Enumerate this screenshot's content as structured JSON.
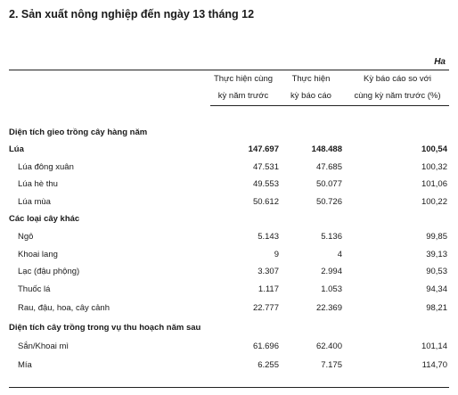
{
  "title": "2. Sản xuất nông nghiệp đến ngày 13 tháng 12",
  "unit": "Ha",
  "headers": {
    "col1_line1": "Thực hiện cùng",
    "col1_line2": "kỳ năm trước",
    "col2_line1": "Thực hiện",
    "col2_line2": "kỳ báo cáo",
    "col3_line1": "Kỳ báo cáo so với",
    "col3_line2": "cùng kỳ năm trước (%)"
  },
  "rows": [
    {
      "label": "Diện tích gieo trồng cây hàng năm",
      "v1": "",
      "v2": "",
      "v3": ""
    },
    {
      "label": "Lúa",
      "v1": "147.697",
      "v2": "148.488",
      "v3": "100,54"
    },
    {
      "label": "Lúa đông xuân",
      "v1": "47.531",
      "v2": "47.685",
      "v3": "100,32"
    },
    {
      "label": "Lúa hè thu",
      "v1": "49.553",
      "v2": "50.077",
      "v3": "101,06"
    },
    {
      "label": "Lúa mùa",
      "v1": "50.612",
      "v2": "50.726",
      "v3": "100,22"
    },
    {
      "label": "Các loại cây khác",
      "v1": "",
      "v2": "",
      "v3": ""
    },
    {
      "label": "Ngô",
      "v1": "5.143",
      "v2": "5.136",
      "v3": "99,85"
    },
    {
      "label": "Khoai lang",
      "v1": "9",
      "v2": "4",
      "v3": "39,13"
    },
    {
      "label": "Lạc (đậu phộng)",
      "v1": "3.307",
      "v2": "2.994",
      "v3": "90,53"
    },
    {
      "label": "Thuốc lá",
      "v1": "1.117",
      "v2": "1.053",
      "v3": "94,34"
    },
    {
      "label": "Rau, đậu, hoa, cây cảnh",
      "v1": "22.777",
      "v2": "22.369",
      "v3": "98,21"
    },
    {
      "label": "Diện tích cây trồng trong vụ thu hoạch năm sau",
      "v1": "",
      "v2": "",
      "v3": ""
    },
    {
      "label": "Sắn/Khoai mì",
      "v1": "61.696",
      "v2": "62.400",
      "v3": "101,14"
    },
    {
      "label": "Mía",
      "v1": "6.255",
      "v2": "7.175",
      "v3": "114,70"
    }
  ]
}
